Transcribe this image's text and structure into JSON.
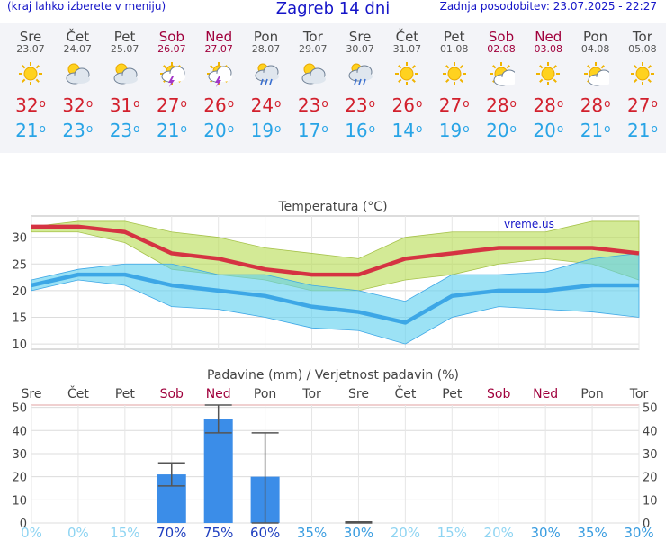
{
  "header": {
    "left_text": "(kraj lahko izberete v meniju)",
    "title": "Zagreb 14 dni",
    "updated": "Zadnja posodobitev: 23.07.2025 - 22:27"
  },
  "forecast": [
    {
      "name": "Sre",
      "date": "23.07",
      "weekend": false,
      "icon": "sun",
      "max": "32",
      "min": "21"
    },
    {
      "name": "Čet",
      "date": "24.07",
      "weekend": false,
      "icon": "cloudy",
      "max": "32",
      "min": "23"
    },
    {
      "name": "Pet",
      "date": "25.07",
      "weekend": false,
      "icon": "cloudy",
      "max": "31",
      "min": "23"
    },
    {
      "name": "Sob",
      "date": "26.07",
      "weekend": true,
      "icon": "storm",
      "max": "27",
      "min": "21"
    },
    {
      "name": "Ned",
      "date": "27.07",
      "weekend": true,
      "icon": "storm",
      "max": "26",
      "min": "20"
    },
    {
      "name": "Pon",
      "date": "28.07",
      "weekend": false,
      "icon": "rain",
      "max": "24",
      "min": "19"
    },
    {
      "name": "Tor",
      "date": "29.07",
      "weekend": false,
      "icon": "cloudy",
      "max": "23",
      "min": "17"
    },
    {
      "name": "Sre",
      "date": "30.07",
      "weekend": false,
      "icon": "rain",
      "max": "23",
      "min": "16"
    },
    {
      "name": "Čet",
      "date": "31.07",
      "weekend": false,
      "icon": "sun",
      "max": "26",
      "min": "14"
    },
    {
      "name": "Pet",
      "date": "01.08",
      "weekend": false,
      "icon": "sun",
      "max": "27",
      "min": "19"
    },
    {
      "name": "Sob",
      "date": "02.08",
      "weekend": true,
      "icon": "partly",
      "max": "28",
      "min": "20"
    },
    {
      "name": "Ned",
      "date": "03.08",
      "weekend": true,
      "icon": "sun",
      "max": "28",
      "min": "20"
    },
    {
      "name": "Pon",
      "date": "04.08",
      "weekend": false,
      "icon": "partly",
      "max": "28",
      "min": "21"
    },
    {
      "name": "Tor",
      "date": "05.08",
      "weekend": false,
      "icon": "sun",
      "max": "27",
      "min": "21"
    }
  ],
  "chart_data": [
    {
      "type": "area",
      "title": "Temperatura (°C)",
      "watermark": "vreme.us",
      "ylim": [
        9,
        34
      ],
      "yticks": [
        10,
        15,
        20,
        25,
        30
      ],
      "grid": true,
      "series": [
        {
          "key": "max",
          "color": "#d53342",
          "values": [
            32,
            32,
            31,
            27,
            26,
            24,
            23,
            23,
            26,
            27,
            28,
            28,
            28,
            27
          ]
        },
        {
          "key": "min",
          "color": "#3da7e6",
          "values": [
            21,
            23,
            23,
            21,
            20,
            19,
            17,
            16,
            14,
            19,
            20,
            20,
            21,
            21
          ]
        },
        {
          "key": "max_high",
          "values": [
            32,
            33,
            33,
            31,
            30,
            28,
            27,
            26,
            30,
            31,
            31,
            31,
            33,
            33
          ]
        },
        {
          "key": "max_low",
          "values": [
            31,
            31,
            29,
            24,
            23,
            22,
            20,
            20,
            22,
            23,
            25,
            26,
            25,
            22
          ]
        },
        {
          "key": "min_high",
          "values": [
            22,
            24,
            25,
            25,
            23,
            23,
            21,
            20,
            18,
            23,
            23,
            23.5,
            26,
            27
          ]
        },
        {
          "key": "min_low",
          "values": [
            20,
            22,
            21,
            17,
            16.5,
            15,
            13,
            12.5,
            10,
            15,
            17,
            16.5,
            16,
            15
          ]
        }
      ]
    },
    {
      "type": "bar",
      "title": "Padavine (mm) / Verjetnost padavin (%)",
      "categories": [
        "Sre",
        "Čet",
        "Pet",
        "Sob",
        "Ned",
        "Pon",
        "Tor",
        "Sre",
        "Čet",
        "Pet",
        "Sob",
        "Ned",
        "Pon",
        "Tor"
      ],
      "category_weekend": [
        false,
        false,
        false,
        true,
        true,
        false,
        false,
        false,
        false,
        false,
        true,
        true,
        false,
        false
      ],
      "values": [
        0,
        0,
        0,
        21,
        45,
        20,
        0,
        0,
        0,
        0,
        0,
        0,
        0,
        0
      ],
      "error_low": [
        null,
        null,
        null,
        16,
        39,
        0,
        null,
        0,
        null,
        null,
        null,
        null,
        null,
        null
      ],
      "error_high": [
        null,
        null,
        null,
        26,
        51,
        39,
        null,
        0.5,
        null,
        null,
        null,
        null,
        null,
        null
      ],
      "probability": [
        "0%",
        "0%",
        "15%",
        "70%",
        "75%",
        "60%",
        "35%",
        "30%",
        "20%",
        "15%",
        "20%",
        "30%",
        "35%",
        "30%"
      ],
      "ylim": [
        0,
        51
      ],
      "yticks": [
        0,
        10,
        20,
        30,
        40,
        50
      ],
      "bar_color": "#3b8de8"
    }
  ]
}
